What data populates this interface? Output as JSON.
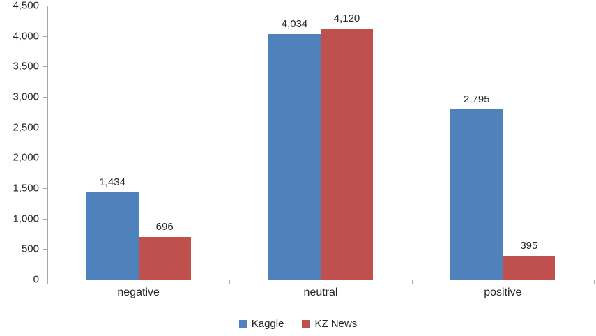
{
  "chart_data": {
    "type": "bar",
    "title": "",
    "xlabel": "",
    "ylabel": "",
    "categories": [
      "negative",
      "neutral",
      "positive"
    ],
    "series": [
      {
        "name": "Kaggle",
        "color": "#4F81BD",
        "values": [
          1434,
          4034,
          2795
        ],
        "value_labels": [
          "1,434",
          "4,034",
          "2,795"
        ]
      },
      {
        "name": "KZ News",
        "color": "#C0504D",
        "values": [
          696,
          4120,
          395
        ],
        "value_labels": [
          "696",
          "4,120",
          "395"
        ]
      }
    ],
    "ylim": [
      0,
      4500
    ],
    "ytick_step": 500,
    "ytick_labels": [
      "0",
      "500",
      "1,000",
      "1,500",
      "2,000",
      "2,500",
      "3,000",
      "3,500",
      "4,000",
      "4,500"
    ],
    "grid": false,
    "legend_position": "bottom",
    "data_labels_shown": true
  },
  "colors": {
    "axis_line": "#A6A6A6",
    "text": "#262626",
    "background": "#FFFFFF"
  }
}
